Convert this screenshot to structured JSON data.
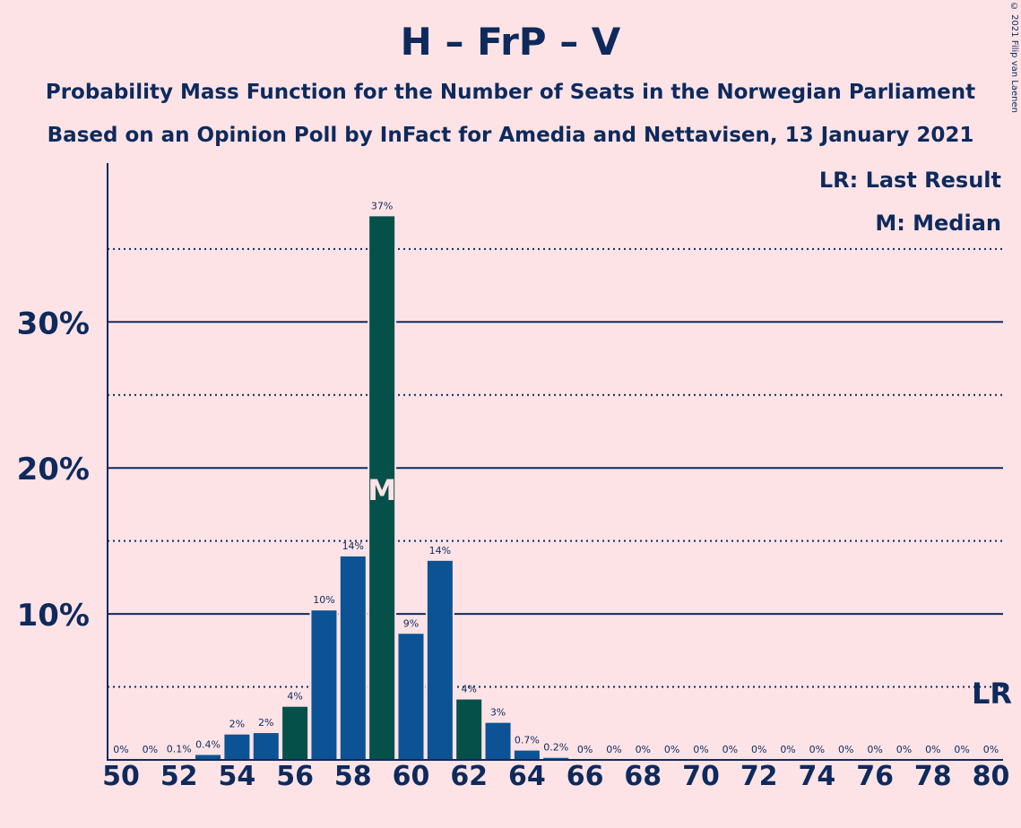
{
  "title": "H – FrP – V",
  "subtitle1": "Probability Mass Function for the Number of Seats in the Norwegian Parliament",
  "subtitle2": "Based on an Opinion Poll by InFact for Amedia and Nettavisen, 13 January 2021",
  "copyright": "© 2021 Filip van Laenen",
  "colors": {
    "background": "#fde3e6",
    "bar": "#0b5394",
    "bar_highlight": "#06504a",
    "axis": "#0e2a5c",
    "text": "#0e2a5c"
  },
  "chart_data": {
    "type": "bar",
    "x": [
      50,
      51,
      52,
      53,
      54,
      55,
      56,
      57,
      58,
      59,
      60,
      61,
      62,
      63,
      64,
      65,
      66,
      67,
      68,
      69,
      70,
      71,
      72,
      73,
      74,
      75,
      76,
      77,
      78,
      79,
      80
    ],
    "values": [
      0,
      0,
      0.1,
      0.4,
      1.8,
      1.9,
      3.7,
      10.3,
      14.0,
      37.3,
      8.7,
      13.7,
      4.2,
      2.6,
      0.7,
      0.2,
      0,
      0,
      0,
      0,
      0,
      0,
      0,
      0,
      0,
      0,
      0,
      0,
      0,
      0,
      0
    ],
    "data_labels": [
      "0%",
      "0%",
      "0.1%",
      "0.4%",
      "2%",
      "2%",
      "4%",
      "10%",
      "14%",
      "37%",
      "9%",
      "14%",
      "4%",
      "3%",
      "0.7%",
      "0.2%",
      "0%",
      "0%",
      "0%",
      "0%",
      "0%",
      "0%",
      "0%",
      "0%",
      "0%",
      "0%",
      "0%",
      "0%",
      "0%",
      "0%",
      "0%"
    ],
    "highlight_x": [
      56,
      59,
      62
    ],
    "median_x": 59,
    "median_marker": "M",
    "last_result_x": 80,
    "last_result_marker": "LR",
    "x_tick_labels": [
      "50",
      "52",
      "54",
      "56",
      "58",
      "60",
      "62",
      "64",
      "66",
      "68",
      "70",
      "72",
      "74",
      "76",
      "78",
      "80"
    ],
    "y_tick_labels": [
      "10%",
      "20%",
      "30%"
    ],
    "y_ticks": [
      10,
      20,
      30
    ],
    "y_minor_ticks": [
      5,
      15,
      25,
      35
    ],
    "ylim": [
      0,
      40.7
    ],
    "legend": {
      "lr": "LR: Last Result",
      "m": "M: Median"
    },
    "legend_position": "top-right",
    "xlabel": "",
    "ylabel": ""
  }
}
